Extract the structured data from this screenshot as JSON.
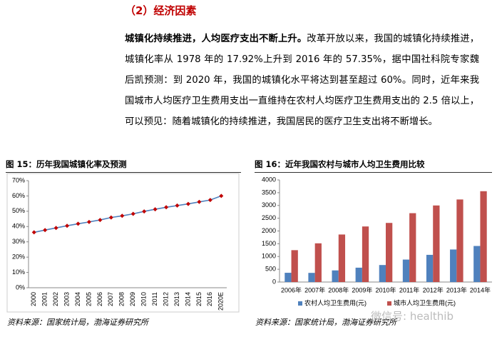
{
  "section_title": "（2）经济因素",
  "paragraph": {
    "lead": "城镇化持续推进，人均医疗支出不断上升。",
    "body": "改革开放以来，我国的城镇化持续推进，城镇化率从 1978 年的 17.92%上升到 2016 年的 57.35%，据中国社科院专家魏后凯预测：到 2020 年，我国的城镇化水平将达到甚至超过 60%。同时，近年来我国城市人均医疗卫生费用支出一直维持在农村人均医疗卫生费用支出的 2.5 倍以上，可以预见：随着城镇化的持续推进，我国居民的医疗卫生支出将不断增长。"
  },
  "watermark": "微信号: healthib",
  "chart_data": [
    {
      "type": "line",
      "title": "图 15：历年我国城镇化率及预测",
      "source": "资料来源：国家统计局，渤海证券研究所",
      "categories": [
        "2000",
        "2001",
        "2002",
        "2003",
        "2004",
        "2005",
        "2006",
        "2007",
        "2008",
        "2009",
        "2010",
        "2011",
        "2012",
        "2013",
        "2014",
        "2015",
        "2016",
        "2020E"
      ],
      "values": [
        36.2,
        37.7,
        39.1,
        40.5,
        41.8,
        43.0,
        44.3,
        45.9,
        47.0,
        48.3,
        49.9,
        51.3,
        52.6,
        53.7,
        54.8,
        56.1,
        57.35,
        60
      ],
      "color": "#4f81bd",
      "marker_color": "#c00000",
      "ylim": [
        0,
        70
      ],
      "yticks": [
        {
          "value": 0,
          "label": "0%"
        },
        {
          "value": 10,
          "label": "10%"
        },
        {
          "value": 20,
          "label": "20%"
        },
        {
          "value": 30,
          "label": "30%"
        },
        {
          "value": 40,
          "label": "40%"
        },
        {
          "value": 50,
          "label": "50%"
        },
        {
          "value": 60,
          "label": "60%"
        },
        {
          "value": 70,
          "label": "70%"
        }
      ],
      "grid": false
    },
    {
      "type": "bar",
      "title": "图 16：近年我国农村与城市人均卫生费用比较",
      "source": "资料来源：国家统计局，渤海证券研究所",
      "categories": [
        "2006年",
        "2007年",
        "2008年",
        "2009年",
        "2010年",
        "2011年",
        "2012年",
        "2013年",
        "2014年"
      ],
      "series": [
        {
          "name": "农村人均卫生费用(元)",
          "color": "#4f81bd",
          "values": [
            361.9,
            358.1,
            455.2,
            562.0,
            666.3,
            879.4,
            1064.8,
            1274.4,
            1412.2
          ]
        },
        {
          "name": "城市人均卫生费用(元)",
          "color": "#c0504d",
          "values": [
            1248.3,
            1516.3,
            1861.8,
            2176.6,
            2315.5,
            2697.5,
            2999.3,
            3234.1,
            3558.3
          ]
        }
      ],
      "ylim": [
        0,
        4000
      ],
      "yticks": [
        0,
        500,
        1000,
        1500,
        2000,
        2500,
        3000,
        3500,
        4000
      ],
      "grid": false,
      "legend": "bottom"
    }
  ]
}
